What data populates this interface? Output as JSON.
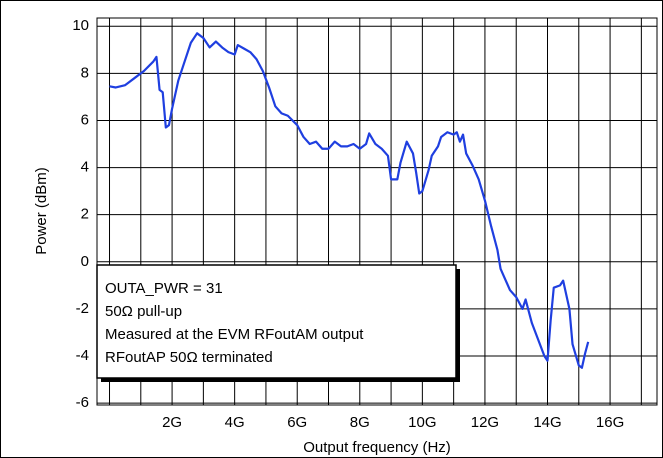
{
  "chart_data": {
    "type": "line",
    "xlabel": "Output frequency (Hz)",
    "ylabel": "Power (dBm)",
    "xlim": [
      -400000000.0,
      17500000000.0
    ],
    "ylim": [
      -6.08,
      10.35
    ],
    "xticks": [
      {
        "value": 2000000000.0,
        "label": "2G"
      },
      {
        "value": 4000000000.0,
        "label": "4G"
      },
      {
        "value": 6000000000.0,
        "label": "6G"
      },
      {
        "value": 8000000000.0,
        "label": "8G"
      },
      {
        "value": 10000000000.0,
        "label": "10G"
      },
      {
        "value": 12000000000.0,
        "label": "12G"
      },
      {
        "value": 14000000000.0,
        "label": "14G"
      },
      {
        "value": 16000000000.0,
        "label": "16G"
      }
    ],
    "xminor": [
      0,
      1000000000.0,
      3000000000.0,
      5000000000.0,
      7000000000.0,
      9000000000.0,
      11000000000.0,
      13000000000.0,
      15000000000.0,
      17000000000.0
    ],
    "yticks": [
      -6,
      -4,
      -2,
      0,
      2,
      4,
      6,
      8,
      10
    ],
    "grid": true,
    "annotations": [
      "OUTA_PWR = 31",
      "50Ω pull-up",
      "Measured at the EVM RFoutAM output",
      "RFoutAP 50Ω terminated"
    ],
    "series": [
      {
        "color": "#1f3fe0",
        "x": [
          0,
          200000000.0,
          500000000.0,
          800000000.0,
          1100000000.0,
          1400000000.0,
          1500000000.0,
          1600000000.0,
          1700000000.0,
          1800000000.0,
          1900000000.0,
          2000000000.0,
          2200000000.0,
          2400000000.0,
          2600000000.0,
          2800000000.0,
          3000000000.0,
          3200000000.0,
          3400000000.0,
          3600000000.0,
          3800000000.0,
          4000000000.0,
          4100000000.0,
          4300000000.0,
          4500000000.0,
          4700000000.0,
          4900000000.0,
          5100000000.0,
          5300000000.0,
          5500000000.0,
          5700000000.0,
          6000000000.0,
          6200000000.0,
          6400000000.0,
          6600000000.0,
          6800000000.0,
          7000000000.0,
          7200000000.0,
          7400000000.0,
          7600000000.0,
          7800000000.0,
          8000000000.0,
          8200000000.0,
          8300000000.0,
          8500000000.0,
          8700000000.0,
          8900000000.0,
          9000000000.0,
          9200000000.0,
          9300000000.0,
          9500000000.0,
          9700000000.0,
          9800000000.0,
          9900000000.0,
          10000000000.0,
          10200000000.0,
          10300000000.0,
          10500000000.0,
          10600000000.0,
          10800000000.0,
          11000000000.0,
          11100000000.0,
          11200000000.0,
          11300000000.0,
          11400000000.0,
          11600000000.0,
          11800000000.0,
          12000000000.0,
          12200000000.0,
          12400000000.0,
          12500000000.0,
          12600000000.0,
          12800000000.0,
          13000000000.0,
          13200000000.0,
          13300000000.0,
          13500000000.0,
          13700000000.0,
          13900000000.0,
          14000000000.0,
          14100000000.0,
          14200000000.0,
          14400000000.0,
          14500000000.0,
          14700000000.0,
          14800000000.0,
          15000000000.0,
          15100000000.0,
          15200000000.0,
          15300000000.0
        ],
        "values": [
          7.45,
          7.4,
          7.5,
          7.8,
          8.1,
          8.5,
          8.7,
          7.3,
          7.2,
          5.7,
          5.8,
          6.5,
          7.7,
          8.5,
          9.3,
          9.7,
          9.5,
          9.1,
          9.35,
          9.1,
          8.9,
          8.8,
          9.2,
          9.05,
          8.9,
          8.6,
          8.1,
          7.4,
          6.6,
          6.3,
          6.2,
          5.8,
          5.3,
          5.0,
          5.1,
          4.8,
          4.8,
          5.1,
          4.9,
          4.9,
          5.0,
          4.8,
          5.0,
          5.45,
          5.0,
          4.8,
          4.5,
          3.5,
          3.5,
          4.2,
          5.1,
          4.6,
          3.8,
          2.9,
          3.0,
          3.9,
          4.5,
          4.9,
          5.3,
          5.5,
          5.4,
          5.5,
          5.1,
          5.4,
          4.6,
          4.1,
          3.5,
          2.6,
          1.5,
          0.5,
          -0.3,
          -0.6,
          -1.2,
          -1.5,
          -2.0,
          -1.6,
          -2.6,
          -3.3,
          -4.0,
          -4.2,
          -2.5,
          -1.1,
          -1.0,
          -0.8,
          -2.0,
          -3.5,
          -4.4,
          -4.5,
          -3.9,
          -3.4
        ]
      }
    ]
  }
}
